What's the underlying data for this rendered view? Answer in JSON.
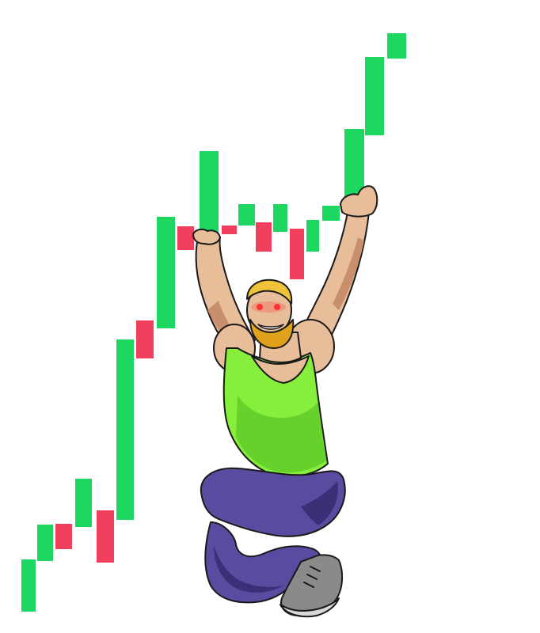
{
  "colors": {
    "background": "#ffffff",
    "up": "#1ed760",
    "down": "#f0405e",
    "outline": "#1a1a1a",
    "skin": "#e8bd9a",
    "skin_shadow": "#c98e6e",
    "beard": "#e0a21a",
    "hair": "#f0c43a",
    "eyes": "#ff3030",
    "tank_top": "#86ef3c",
    "tank_shadow": "#4fb81f",
    "pants": "#5a4aa0",
    "pants_shadow": "#3b2f78",
    "shoe": "#8a8a8a",
    "shoe_light": "#d8d8d8"
  },
  "illustration": {
    "subject": "muscular-man-lifting-candlestick-chart",
    "icons": [
      "candlestick-chart-icon",
      "bodybuilder-figure-icon"
    ]
  }
}
